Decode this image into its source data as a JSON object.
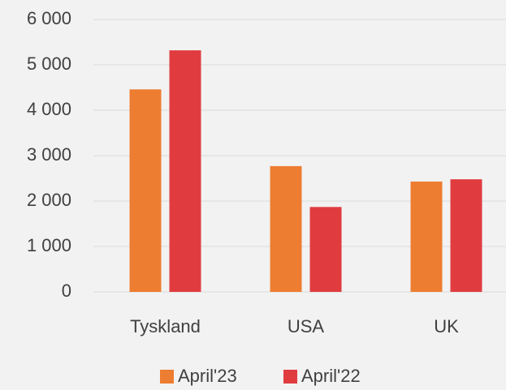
{
  "chart_data": {
    "type": "bar",
    "categories": [
      "Tyskland",
      "USA",
      "UK"
    ],
    "series": [
      {
        "name": "April'23",
        "color": "#ed7d31",
        "values": [
          4460,
          2770,
          2430
        ]
      },
      {
        "name": "April'22",
        "color": "#e03c40",
        "values": [
          5320,
          1870,
          2480
        ]
      }
    ],
    "ylim": [
      0,
      6000
    ],
    "yticks": [
      0,
      {
        "value": 1000,
        "label": "1 000"
      },
      {
        "value": 2000,
        "label": "2 000"
      },
      {
        "value": 3000,
        "label": "3 000"
      },
      {
        "value": 4000,
        "label": "4 000"
      },
      {
        "value": 5000,
        "label": "5 000"
      },
      {
        "value": 6000,
        "label": "6 000"
      }
    ],
    "grid": true,
    "legend": "bottom"
  }
}
